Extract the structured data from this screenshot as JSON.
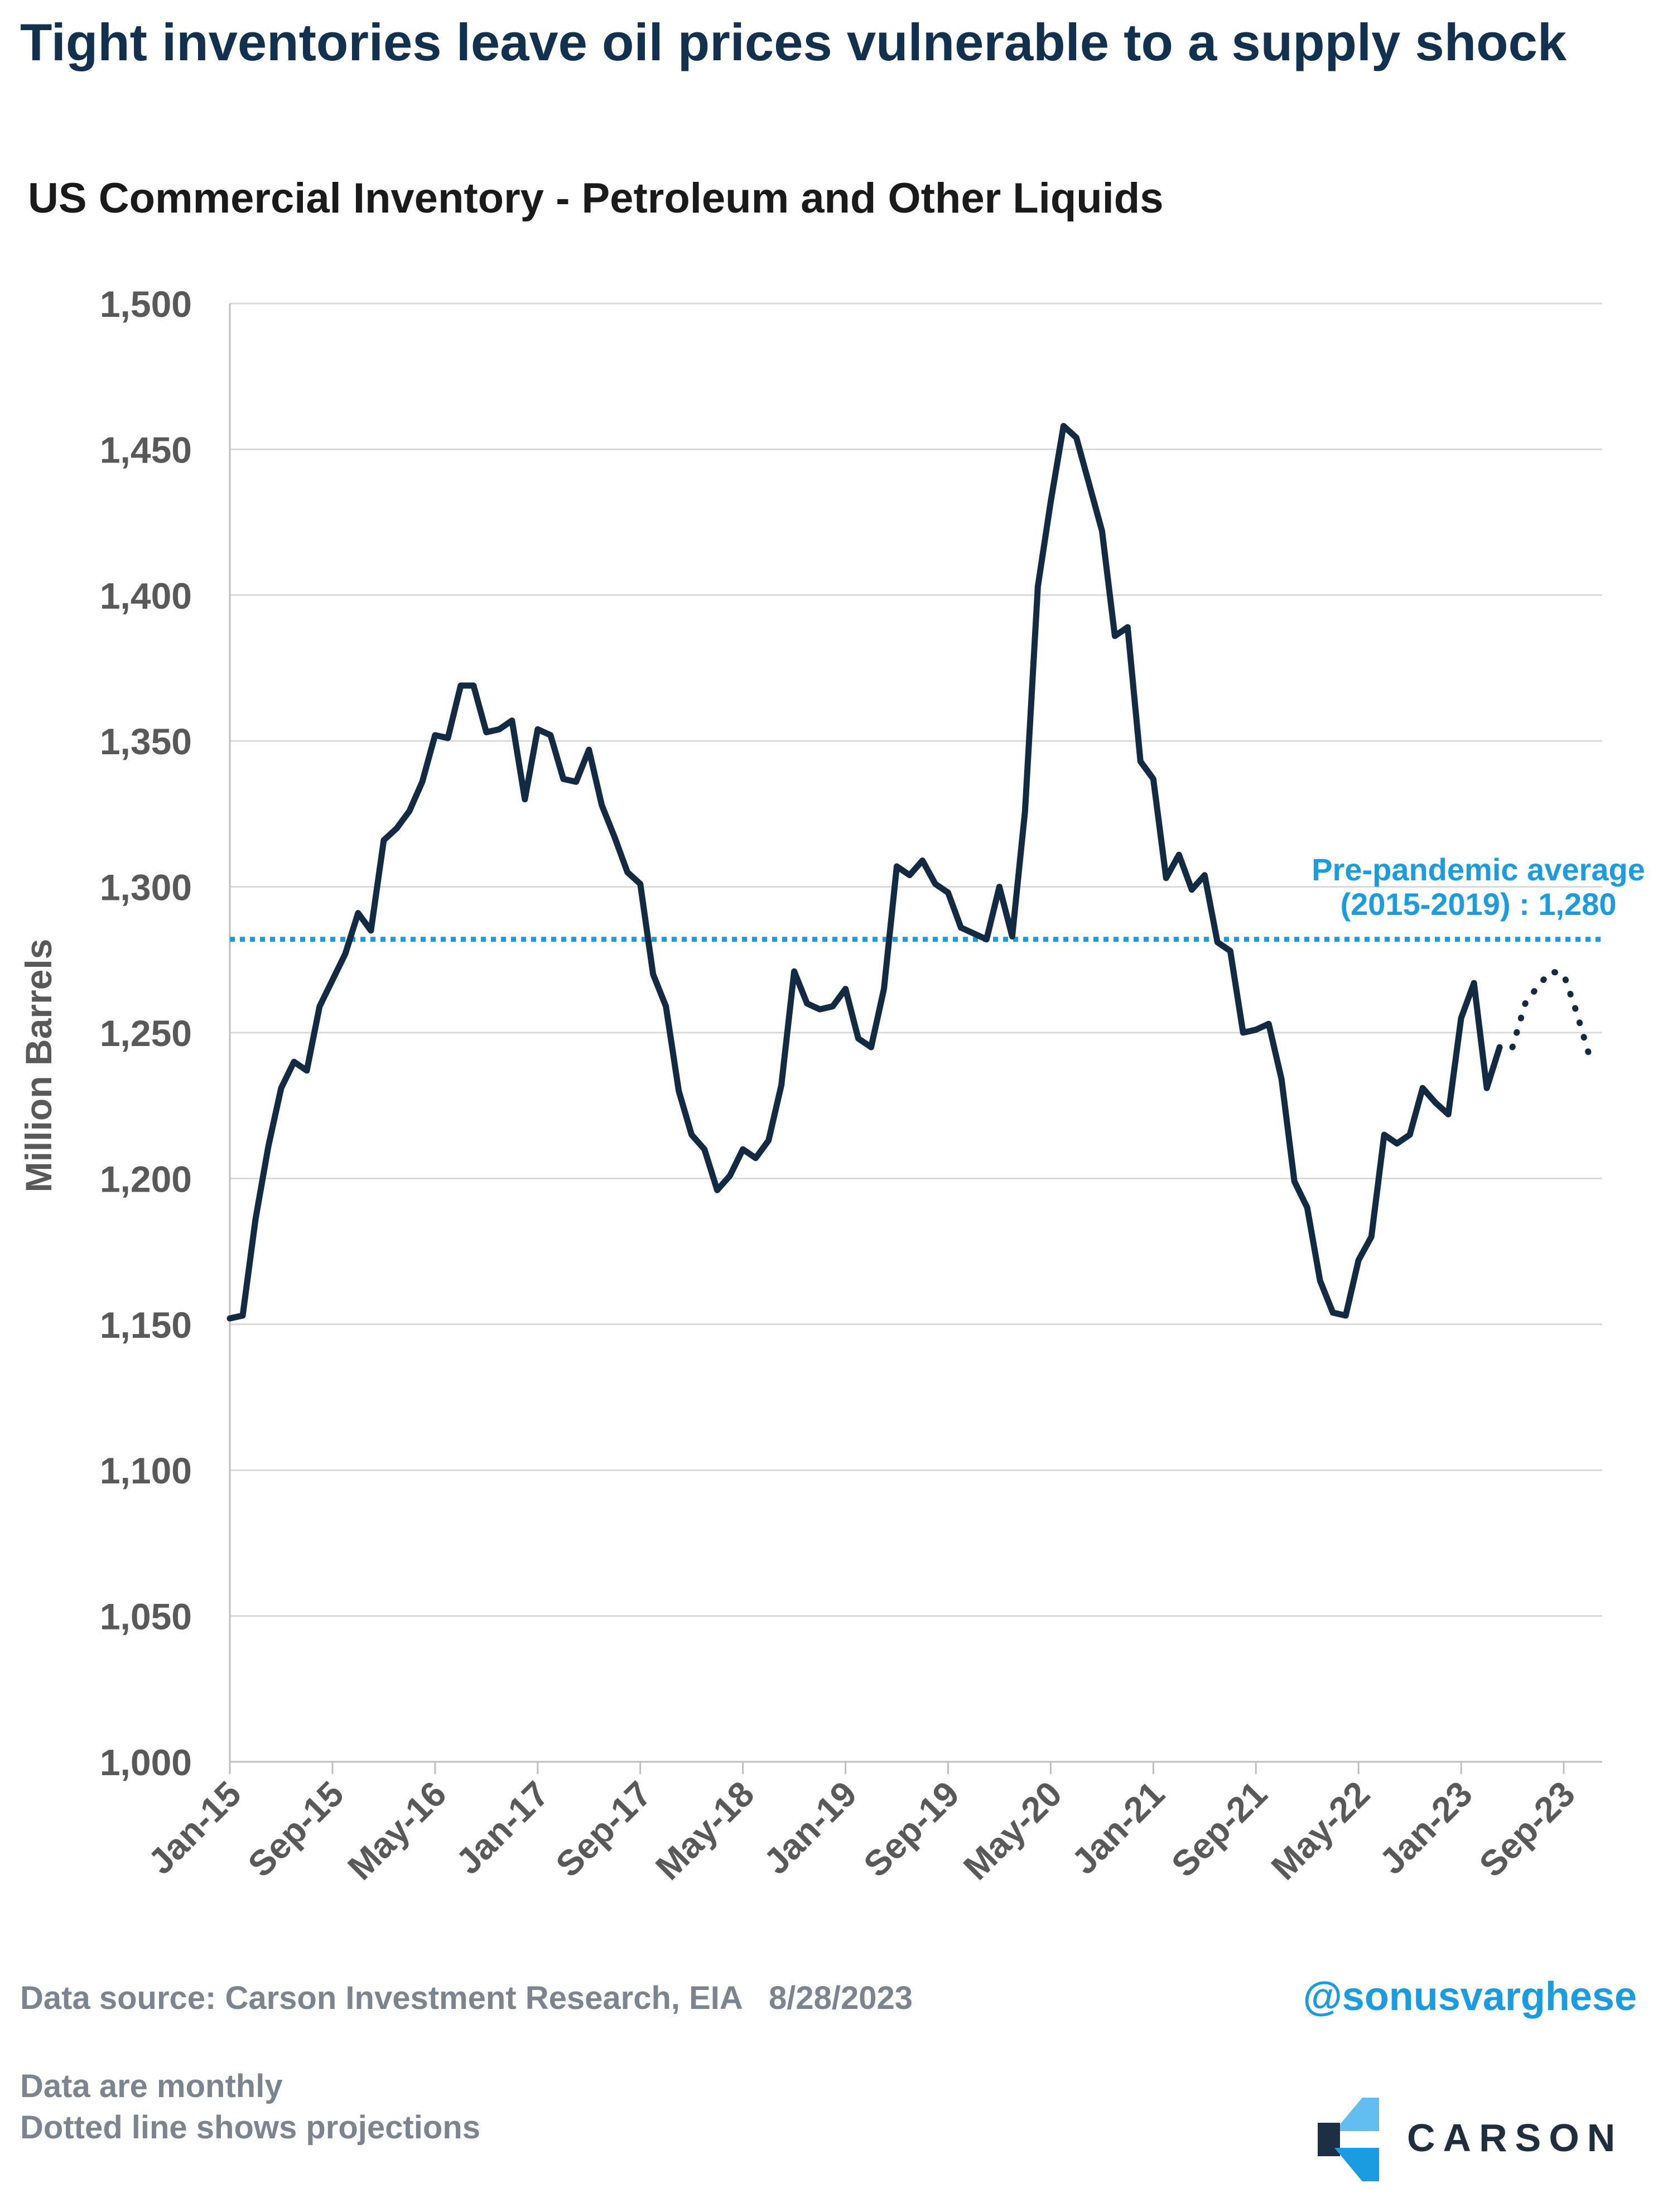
{
  "header": {
    "title": "Tight inventories leave oil prices vulnerable to a supply shock",
    "subtitle": "US Commercial Inventory - Petroleum and Other Liquids"
  },
  "chart_data": {
    "type": "line",
    "title": "Tight inventories leave oil prices vulnerable to a supply shock",
    "subtitle": "US Commercial Inventory - Petroleum and Other Liquids",
    "xlabel": "",
    "ylabel": "Million Barrels",
    "ylim": [
      1000,
      1500
    ],
    "yticks": [
      "1,000",
      "1,050",
      "1,100",
      "1,150",
      "1,200",
      "1,250",
      "1,300",
      "1,350",
      "1,400",
      "1,450",
      "1,500"
    ],
    "xticks": [
      "Jan-15",
      "Sep-15",
      "May-16",
      "Jan-17",
      "Sep-17",
      "May-18",
      "Jan-19",
      "Sep-19",
      "May-20",
      "Jan-21",
      "Sep-21",
      "May-22",
      "Jan-23",
      "Sep-23"
    ],
    "x_range": [
      "Jan-15",
      "Dec-23"
    ],
    "grid": "horizontal",
    "colors": {
      "series": "#122a42",
      "average": "#1b9be0"
    },
    "series": [
      {
        "name": "",
        "style": "solid",
        "start": "Jan-15",
        "values": [
          1152,
          1153,
          1186,
          1211,
          1231,
          1240,
          1237,
          1259,
          1268,
          1277,
          1291,
          1285,
          1316,
          1320,
          1326,
          1336,
          1352,
          1351,
          1369,
          1369,
          1353,
          1354,
          1357,
          1330,
          1354,
          1352,
          1337,
          1336,
          1347,
          1328,
          1317,
          1305,
          1301,
          1270,
          1259,
          1230,
          1215,
          1210,
          1196,
          1201,
          1210,
          1207,
          1213,
          1232,
          1271,
          1260,
          1258,
          1259,
          1265,
          1248,
          1245,
          1265,
          1307,
          1304,
          1309,
          1301,
          1298,
          1286,
          1284,
          1282,
          1300,
          1283,
          1326,
          1403,
          1432,
          1458,
          1454,
          1438,
          1422,
          1386,
          1389,
          1343,
          1337,
          1303,
          1311,
          1299,
          1304,
          1281,
          1278,
          1250,
          1251,
          1253,
          1234,
          1199,
          1190,
          1165,
          1154,
          1153,
          1172,
          1180,
          1215,
          1212,
          1215,
          1231,
          1226,
          1222,
          1255,
          1267,
          1231,
          1245
        ]
      },
      {
        "name": "",
        "style": "dotted",
        "start": "May-23",
        "values": [
          1245,
          1260,
          1266,
          1271,
          1270,
          1257,
          1242
        ]
      }
    ],
    "reference_line": {
      "value": 1282,
      "label_line1": "Pre-pandemic average",
      "label_line2": "(2015-2019) : 1,280",
      "style": "dotted"
    }
  },
  "footer": {
    "source": "Data source: Carson Investment Research, EIA   8/28/2023",
    "note1": "Data are monthly",
    "note2": "Dotted line shows projections",
    "handle": "@sonusvarghese",
    "brand": "CARSON"
  }
}
